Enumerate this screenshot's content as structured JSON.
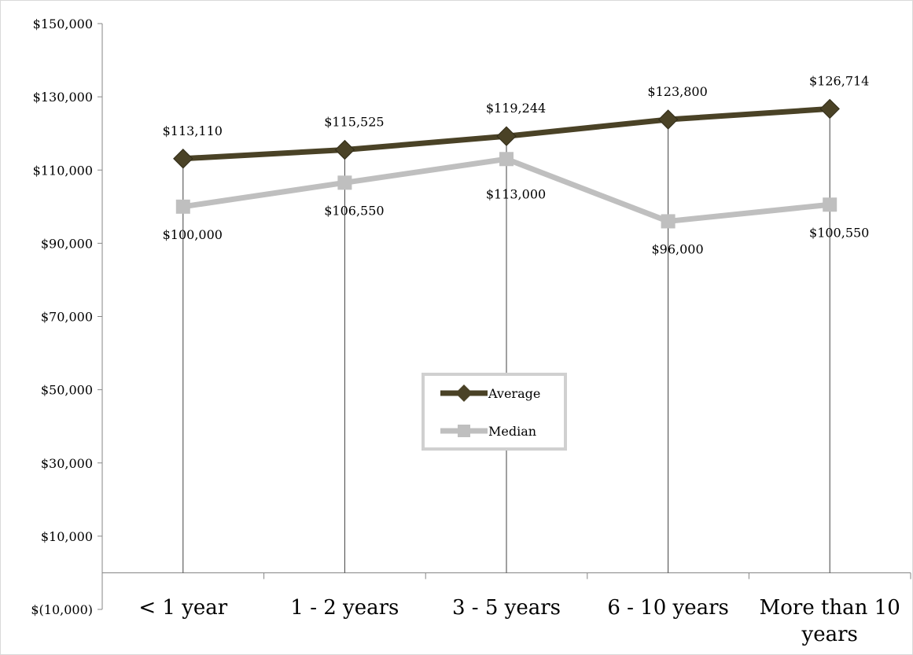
{
  "chart_data": {
    "type": "line",
    "categories": [
      "< 1 year",
      "1 - 2 years",
      "3 - 5 years",
      "6 - 10 years",
      "More than 10 years"
    ],
    "series": [
      {
        "name": "Average",
        "values": [
          113110,
          115525,
          119244,
          123800,
          126714
        ],
        "labels": [
          "$113,110",
          "$115,525",
          "$119,244",
          "$123,800",
          "$126,714"
        ],
        "color": "#4a4226",
        "marker": "diamond"
      },
      {
        "name": "Median",
        "values": [
          100000,
          106550,
          113000,
          96000,
          100550
        ],
        "labels": [
          "$100,000",
          "$106,550",
          "$113,000",
          "$96,000",
          "$100,550"
        ],
        "color": "#bfbfbf",
        "marker": "square"
      }
    ],
    "ylim": [
      -10000,
      150000
    ],
    "yticks": [
      150000,
      130000,
      110000,
      90000,
      70000,
      50000,
      30000,
      10000,
      -10000
    ],
    "ytick_labels": [
      "$150,000",
      "$130,000",
      "$110,000",
      "$90,000",
      "$70,000",
      "$50,000",
      "$30,000",
      "$10,000",
      "$(10,000)"
    ],
    "high_low_lines": true,
    "legend_position": "center",
    "title": "",
    "xlabel": "",
    "ylabel": ""
  }
}
